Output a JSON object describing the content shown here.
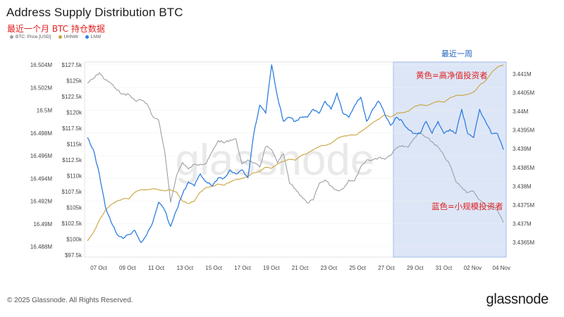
{
  "header": {
    "title": "Address Supply Distribution BTC",
    "subtitle": "最近一个月 BTC 持仓数据"
  },
  "legend": [
    {
      "label": "BTC: Price [USD]",
      "color": "#9aa0a6"
    },
    {
      "label": "UHNW",
      "color": "#c9a33c"
    },
    {
      "label": "LNW",
      "color": "#2f7ee0"
    }
  ],
  "footer": {
    "copyright": "© 2025 Glassnode. All Rights Reserved.",
    "brand": "glassnode"
  },
  "chart_data": {
    "type": "line",
    "title": "Address Supply Distribution BTC",
    "x_ticks": [
      "07 Oct",
      "09 Oct",
      "11 Oct",
      "13 Oct",
      "15 Oct",
      "17 Oct",
      "19 Oct",
      "21 Oct",
      "23 Oct",
      "25 Oct",
      "27 Oct",
      "29 Oct",
      "31 Oct",
      "02 Nov",
      "04 Nov"
    ],
    "left_axis_outer": {
      "labels": [
        "16.504M",
        "16.502M",
        "16.5M",
        "16.498M",
        "16.496M",
        "16.494M",
        "16.492M",
        "16.49M",
        "16.488M"
      ],
      "range": [
        16.488,
        16.504
      ],
      "unit": "M"
    },
    "left_axis_inner": {
      "labels": [
        "$127.5k",
        "$125k",
        "$122.5k",
        "$120k",
        "$117.5k",
        "$115k",
        "$112.5k",
        "$110k",
        "$107.5k",
        "$105k",
        "$102.5k",
        "$100k",
        "$97.5k"
      ],
      "range": [
        97.5,
        127.5
      ],
      "unit": "k USD"
    },
    "right_axis": {
      "labels": [
        "3.441M",
        "3.4405M",
        "3.44M",
        "3.4395M",
        "3.439M",
        "3.4385M",
        "3.438M",
        "3.4375M",
        "3.437M",
        "3.4365M"
      ],
      "range": [
        3.4365,
        3.441
      ],
      "unit": "M"
    },
    "highlight": {
      "label": "最近一周",
      "from": "28 Oct",
      "to": "05 Nov"
    },
    "annotations": {
      "uhnw": "黄色=高净值投资者",
      "lnw": "蓝色=小规模投资者"
    },
    "series": [
      {
        "name": "BTC: Price [USD]",
        "axis": "left_inner",
        "color": "#9aa0a6",
        "values": [
          124.5,
          125.2,
          126.2,
          125.0,
          124.4,
          123.3,
          122.7,
          122.6,
          121.6,
          121.7,
          121.1,
          119.0,
          118.3,
          113.2,
          104.8,
          109.2,
          111.4,
          110.3,
          111.1,
          111.1,
          111.2,
          113.2,
          115.0,
          114.6,
          115.1,
          115.3,
          111.1,
          111.8,
          111.3,
          110.6,
          114.0,
          113.5,
          111.3,
          112.8,
          108.0,
          107.0,
          105.8,
          104.7,
          105.2,
          107.9,
          108.5,
          107.5,
          106.8,
          107.0,
          108.5,
          108.4,
          110.7,
          111.8,
          111.8,
          112.2,
          111.9,
          112.5,
          113.8,
          114.2,
          113.9,
          115.4,
          116.2,
          115.5,
          114.8,
          113.9,
          112.5,
          111.0,
          108.2,
          107.3,
          106.4,
          106.6,
          105.2,
          104.3,
          104.2,
          103.5,
          101.5
        ]
      },
      {
        "name": "UHNW",
        "axis": "left_outer",
        "color": "#c9a33c",
        "values": [
          16.4885,
          16.4892,
          16.4903,
          16.4912,
          16.4917,
          16.492,
          16.4922,
          16.4922,
          16.4928,
          16.493,
          16.493,
          16.4931,
          16.493,
          16.4929,
          16.493,
          16.4928,
          16.492,
          16.4918,
          16.492,
          16.4928,
          16.4932,
          16.4933,
          16.4935,
          16.4934,
          16.4937,
          16.4939,
          16.494,
          16.4942,
          16.4945,
          16.4946,
          16.495,
          16.4949,
          16.4953,
          16.4955,
          16.4957,
          16.4956,
          16.496,
          16.4962,
          16.4965,
          16.4968,
          16.4969,
          16.4971,
          16.4975,
          16.4977,
          16.4978,
          16.4978,
          16.4981,
          16.4985,
          16.4989,
          16.4992,
          16.4996,
          16.4994,
          16.4997,
          16.4998,
          16.4999,
          16.5003,
          16.5005,
          16.5004,
          16.5006,
          16.5008,
          16.5007,
          16.5011,
          16.5013,
          16.5013,
          16.5014,
          16.5016,
          16.5022,
          16.5026,
          16.5033,
          16.5038,
          16.504
        ]
      },
      {
        "name": "LNW",
        "axis": "right",
        "color": "#2f7ee0",
        "values": [
          3.4392,
          3.4389,
          3.4383,
          3.4375,
          3.4371,
          3.4368,
          3.4367,
          3.4368,
          3.4369,
          3.4366,
          3.4368,
          3.4371,
          3.4376,
          3.4374,
          3.437,
          3.4374,
          3.4378,
          3.4381,
          3.438,
          3.4383,
          3.4381,
          3.438,
          3.4382,
          3.4382,
          3.4384,
          3.4383,
          3.4384,
          3.4382,
          3.4393,
          3.44,
          3.4398,
          3.441,
          3.4402,
          3.4396,
          3.4397,
          3.4396,
          3.4397,
          3.4397,
          3.4399,
          3.4398,
          3.4401,
          3.4399,
          3.4403,
          3.4398,
          3.4397,
          3.44,
          3.4402,
          3.4396,
          3.4399,
          3.4401,
          3.4398,
          3.4395,
          3.4397,
          3.4396,
          3.4394,
          3.4393,
          3.4393,
          3.4396,
          3.4393,
          3.4396,
          3.4393,
          3.4394,
          3.4393,
          3.4399,
          3.4393,
          3.4392,
          3.4399,
          3.4396,
          3.4393,
          3.4393,
          3.4389
        ]
      }
    ]
  }
}
